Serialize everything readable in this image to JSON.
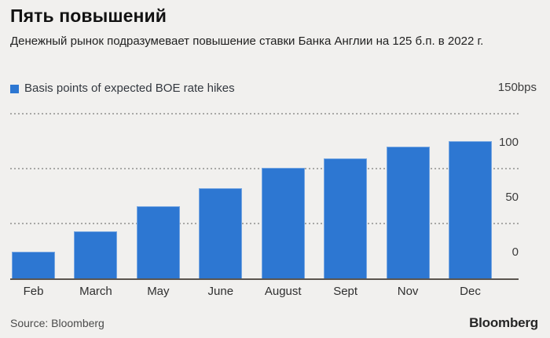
{
  "header": {
    "title": "Пять повышений",
    "subtitle": "Денежный рынок подразумевает повышение ставки Банка Англии на 125 б.п. в 2022 г."
  },
  "legend": {
    "label": "Basis points of expected BOE rate hikes",
    "swatch_color": "#2d77d2"
  },
  "chart_data": {
    "type": "bar",
    "title": "Пять повышений",
    "subtitle": "Денежный рынок подразумевает повышение ставки Банка Англии на 125 б.п. в 2022 г.",
    "series_name": "Basis points of expected BOE rate hikes",
    "categories": [
      "Feb",
      "March",
      "May",
      "June",
      "August",
      "Sept",
      "Nov",
      "Dec"
    ],
    "values": [
      24,
      43,
      66,
      82,
      101,
      109,
      120,
      125
    ],
    "ylabel": "bps",
    "ylim": [
      0,
      150
    ],
    "yticks": [
      {
        "value": 150,
        "label": "150bps"
      },
      {
        "value": 100,
        "label": "100"
      },
      {
        "value": 50,
        "label": "50"
      },
      {
        "value": 0,
        "label": "0"
      }
    ],
    "grid": "horizontal-dotted",
    "legend_position": "top-left",
    "bar_color": "#2d77d2"
  },
  "footer": {
    "source": "Source: Bloomberg",
    "brand": "Bloomberg"
  }
}
